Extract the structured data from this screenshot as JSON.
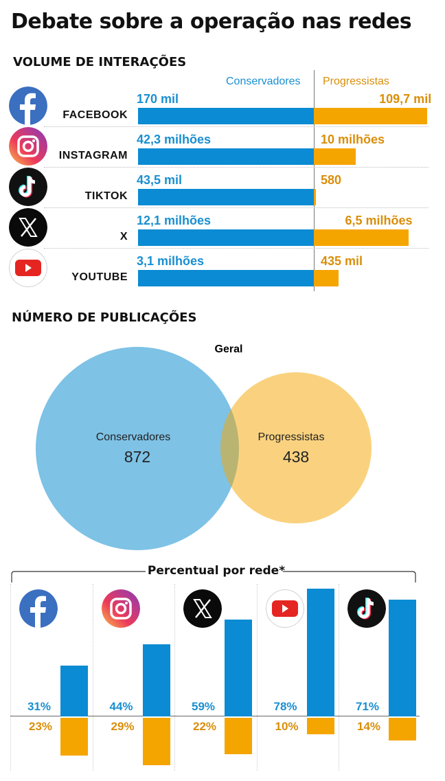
{
  "title": "Debate sobre a operação nas redes",
  "colors": {
    "conservadores": "#0a8bd3",
    "progressistas": "#f5a500",
    "cons_text": "#1a8fd0",
    "prog_text": "#d98e0a"
  },
  "chart_data": [
    {
      "type": "bar",
      "title": "VOLUME DE INTERAÇÕES",
      "orientation": "horizontal-diverging",
      "legend": [
        "Conservadores",
        "Progressistas"
      ],
      "categories": [
        "FACEBOOK",
        "INSTAGRAM",
        "TIKTOK",
        "X",
        "YOUTUBE"
      ],
      "icons": [
        "facebook-icon",
        "instagram-icon",
        "tiktok-icon",
        "x-icon",
        "youtube-icon"
      ],
      "series": [
        {
          "name": "Conservadores",
          "values": [
            170000,
            42300000,
            43500,
            12100000,
            3100000
          ],
          "labels": [
            "170 mil",
            "42,3 milhões",
            "43,5 mil",
            "12,1 milhões",
            "3,1 milhões"
          ]
        },
        {
          "name": "Progressistas",
          "values": [
            109700,
            10000000,
            580,
            6500000,
            435000
          ],
          "labels": [
            "109,7 mil",
            "10 milhões",
            "580",
            "6,5 milhões",
            "435 mil"
          ]
        }
      ]
    },
    {
      "type": "venn",
      "title": "NÚMERO DE PUBLICAÇÕES",
      "subtitle": "Geral",
      "sets": [
        {
          "name": "Conservadores",
          "value": 872,
          "label": "872"
        },
        {
          "name": "Progressistas",
          "value": 438,
          "label": "438"
        }
      ]
    },
    {
      "type": "bar",
      "title": "Percentual por rede*",
      "categories": [
        "Facebook",
        "Instagram",
        "X",
        "YouTube",
        "TikTok"
      ],
      "icons": [
        "facebook-icon",
        "instagram-icon",
        "x-icon",
        "youtube-icon",
        "tiktok-icon"
      ],
      "series": [
        {
          "name": "Conservadores",
          "values": [
            31,
            44,
            59,
            78,
            71
          ],
          "labels": [
            "31%",
            "44%",
            "59%",
            "78%",
            "71%"
          ]
        },
        {
          "name": "Progressistas",
          "values": [
            23,
            29,
            22,
            10,
            14
          ],
          "labels": [
            "23%",
            "29%",
            "22%",
            "10%",
            "14%"
          ]
        }
      ]
    }
  ]
}
